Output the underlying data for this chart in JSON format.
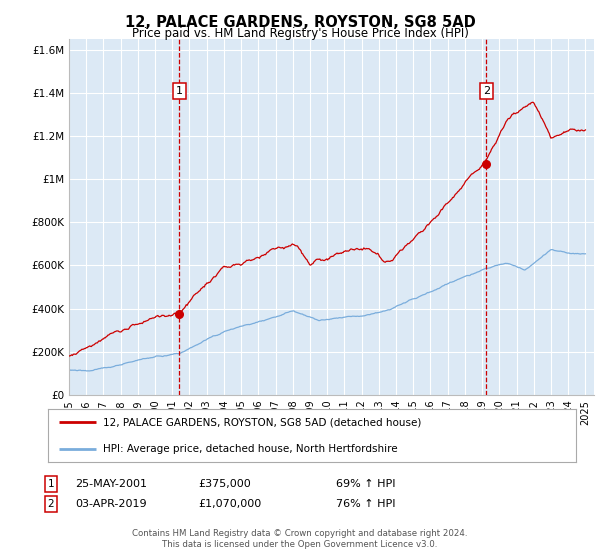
{
  "title": "12, PALACE GARDENS, ROYSTON, SG8 5AD",
  "subtitle": "Price paid vs. HM Land Registry's House Price Index (HPI)",
  "ylim": [
    0,
    1650000
  ],
  "xlim_start": 1995.0,
  "xlim_end": 2025.5,
  "background_color": "#ffffff",
  "plot_bg_color": "#dce9f5",
  "grid_color": "#ffffff",
  "red_line_color": "#cc0000",
  "blue_line_color": "#7aaddc",
  "marker1_date": 2001.4,
  "marker1_value": 375000,
  "marker2_date": 2019.25,
  "marker2_value": 1070000,
  "legend_label_red": "12, PALACE GARDENS, ROYSTON, SG8 5AD (detached house)",
  "legend_label_blue": "HPI: Average price, detached house, North Hertfordshire",
  "annotation1_date": "25-MAY-2001",
  "annotation1_price": "£375,000",
  "annotation1_hpi": "69% ↑ HPI",
  "annotation2_date": "03-APR-2019",
  "annotation2_price": "£1,070,000",
  "annotation2_hpi": "76% ↑ HPI",
  "footer1": "Contains HM Land Registry data © Crown copyright and database right 2024.",
  "footer2": "This data is licensed under the Open Government Licence v3.0.",
  "yticks": [
    0,
    200000,
    400000,
    600000,
    800000,
    1000000,
    1200000,
    1400000,
    1600000
  ],
  "ytick_labels": [
    "£0",
    "£200K",
    "£400K",
    "£600K",
    "£800K",
    "£1M",
    "£1.2M",
    "£1.4M",
    "£1.6M"
  ]
}
